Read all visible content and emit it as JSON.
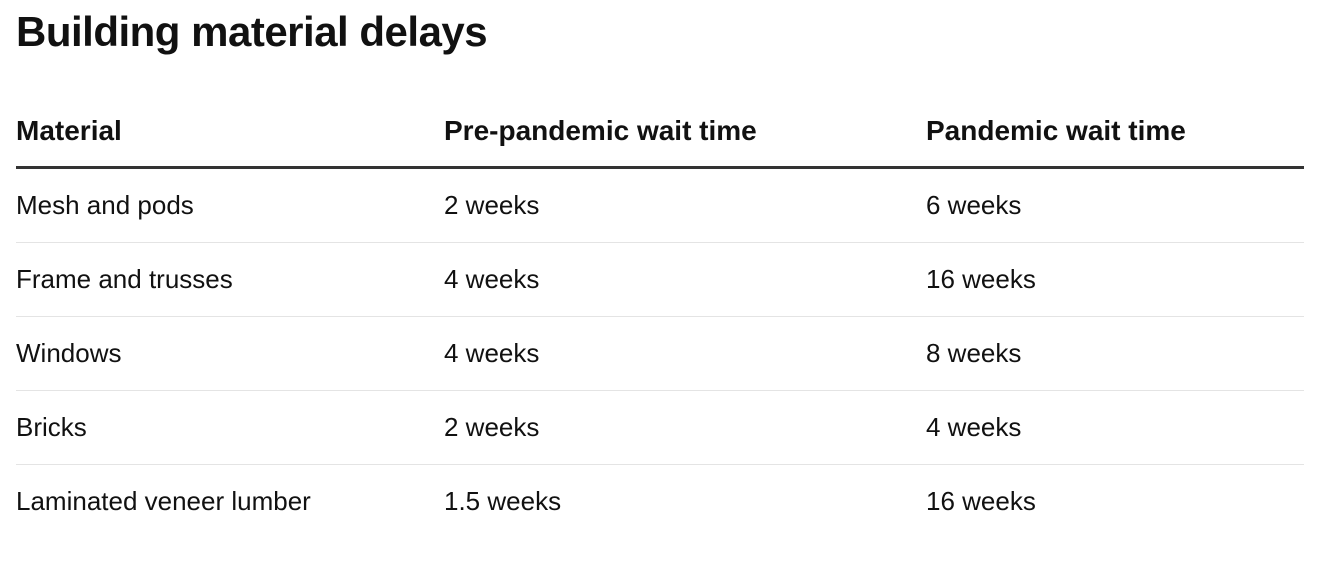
{
  "header": {
    "title": "Building material delays"
  },
  "table": {
    "columns": [
      "Material",
      "Pre-pandemic wait time",
      "Pandemic wait time"
    ],
    "rows": [
      [
        "Mesh and pods",
        "2 weeks",
        "6 weeks"
      ],
      [
        "Frame and trusses",
        "4 weeks",
        "16 weeks"
      ],
      [
        "Windows",
        "4 weeks",
        "8 weeks"
      ],
      [
        "Bricks",
        "2 weeks",
        "4 weeks"
      ],
      [
        "Laminated veneer lumber",
        "1.5 weeks",
        "16 weeks"
      ]
    ]
  }
}
